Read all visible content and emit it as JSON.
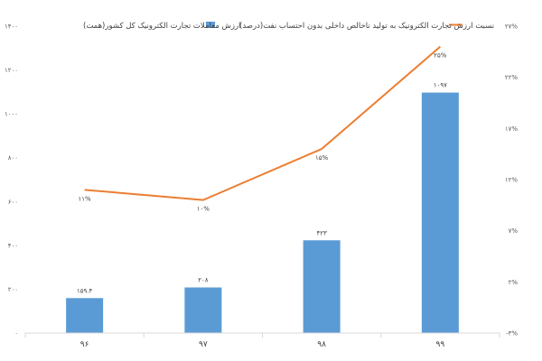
{
  "chart_data": {
    "type": "bar",
    "categories": [
      "۹۶",
      "۹۷",
      "۹۸",
      "۹۹"
    ],
    "series": [
      {
        "name": "ارزش معاملات تجارت الکترونیک کل کشور(همت)",
        "type": "bar",
        "axis": "left",
        "values": [
          159.4,
          208,
          423,
          1097
        ],
        "labels": [
          "۱۵۹.۴",
          "۲۰۸",
          "۴۲۳",
          "۱۰۹۷"
        ],
        "color": "#5b9bd5"
      },
      {
        "name": "نسبت ارزش تجارت الکترونیک به تولید ناخالص داخلی بدون احتساب نفت(درصد)",
        "type": "line",
        "axis": "right",
        "values": [
          11,
          10,
          15,
          25
        ],
        "labels": [
          "۱۱%",
          "۱۰%",
          "۱۵%",
          "۲۵%"
        ],
        "color": "#ed7d31"
      }
    ],
    "y_left": {
      "range": [
        0,
        1400
      ],
      "ticks": [
        0,
        200,
        400,
        600,
        800,
        1000,
        1200,
        1400
      ],
      "tick_labels": [
        "۰",
        "۲۰۰",
        "۴۰۰",
        "۶۰۰",
        "۸۰۰",
        "۱۰۰۰",
        "۱۲۰۰",
        "۱۴۰۰"
      ]
    },
    "y_right": {
      "range": [
        -3,
        27
      ],
      "ticks": [
        -3,
        2,
        7,
        12,
        17,
        22,
        27
      ],
      "tick_labels": [
        "-۳%",
        "۲%",
        "۷%",
        "۱۲%",
        "۱۷%",
        "۲۲%",
        "۲۷%"
      ]
    },
    "legend_position": "top",
    "grid": false
  }
}
